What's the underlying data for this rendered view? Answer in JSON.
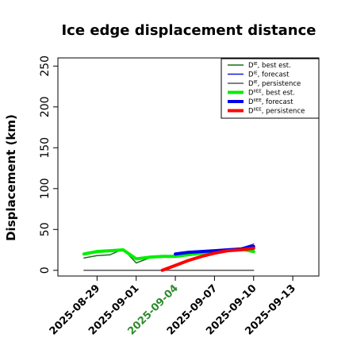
{
  "chart_data": {
    "type": "line",
    "title": "Ice edge displacement distance",
    "ylabel": "Displacement (km)",
    "xlabel": "",
    "ylim": [
      -7,
      260
    ],
    "xlim": [
      "2025-08-26",
      "2025-09-15"
    ],
    "yticks": [
      0,
      50,
      100,
      150,
      200,
      250
    ],
    "xticks": [
      {
        "date": "2025-08-29",
        "label": "2025-08-29",
        "color": "#000000"
      },
      {
        "date": "2025-09-01",
        "label": "2025-09-01",
        "color": "#000000"
      },
      {
        "date": "2025-09-04",
        "label": "2025-09-04",
        "color": "#2e8b2e"
      },
      {
        "date": "2025-09-07",
        "label": "2025-09-07",
        "color": "#000000"
      },
      {
        "date": "2025-09-10",
        "label": "2025-09-10",
        "color": "#000000"
      },
      {
        "date": "2025-09-13",
        "label": "2025-09-13",
        "color": "#000000"
      }
    ],
    "grid": false,
    "legend_position": "top-right",
    "series": [
      {
        "legend": {
          "base": "D",
          "sup": "IE",
          "suffix": ", best est."
        },
        "color": "#1a6b1a",
        "width": 1.5,
        "x": [
          "2025-08-28",
          "2025-08-29",
          "2025-08-30",
          "2025-08-31",
          "2025-09-01",
          "2025-09-02",
          "2025-09-03",
          "2025-09-04"
        ],
        "y": [
          15,
          18,
          19,
          26,
          9,
          15,
          16,
          17
        ]
      },
      {
        "legend": {
          "base": "D",
          "sup": "IE",
          "suffix": ", forecast"
        },
        "color": "#1a1acc",
        "width": 1.5,
        "x": [
          "2025-09-04",
          "2025-09-05",
          "2025-09-06",
          "2025-09-07",
          "2025-09-08",
          "2025-09-09",
          "2025-09-10"
        ],
        "y": [
          18,
          21,
          23,
          24,
          26,
          27,
          32
        ]
      },
      {
        "legend": {
          "base": "D",
          "sup": "IE",
          "suffix": ", persistence"
        },
        "color": "#555555",
        "width": 1.5,
        "x": [
          "2025-08-28",
          "2025-09-10"
        ],
        "y": [
          0,
          0
        ]
      },
      {
        "legend": {
          "base": "D",
          "sup": "IIEE",
          "suffix": ", best est."
        },
        "color": "#00ee00",
        "width": 4,
        "x": [
          "2025-08-28",
          "2025-08-29",
          "2025-08-30",
          "2025-08-31",
          "2025-09-01",
          "2025-09-02",
          "2025-09-03",
          "2025-09-04",
          "2025-09-05",
          "2025-09-06",
          "2025-09-07",
          "2025-09-08",
          "2025-09-09",
          "2025-09-10"
        ],
        "y": [
          20,
          23,
          24,
          25,
          14,
          16,
          17,
          17,
          19,
          21,
          23,
          25,
          26,
          23
        ]
      },
      {
        "legend": {
          "base": "D",
          "sup": "IIEE",
          "suffix": ", forecast"
        },
        "color": "#0000ee",
        "width": 4,
        "x": [
          "2025-09-04",
          "2025-09-05",
          "2025-09-06",
          "2025-09-07",
          "2025-09-08",
          "2025-09-09",
          "2025-09-10"
        ],
        "y": [
          20,
          22,
          23,
          24,
          25,
          26,
          29
        ]
      },
      {
        "legend": {
          "base": "D",
          "sup": "IIEE",
          "suffix": ", persistence"
        },
        "color": "#ff0000",
        "width": 4,
        "x": [
          "2025-09-03",
          "2025-09-04",
          "2025-09-05",
          "2025-09-06",
          "2025-09-07",
          "2025-09-08",
          "2025-09-09",
          "2025-09-10"
        ],
        "y": [
          0,
          6,
          12,
          17,
          21,
          24,
          25,
          27
        ]
      }
    ]
  }
}
